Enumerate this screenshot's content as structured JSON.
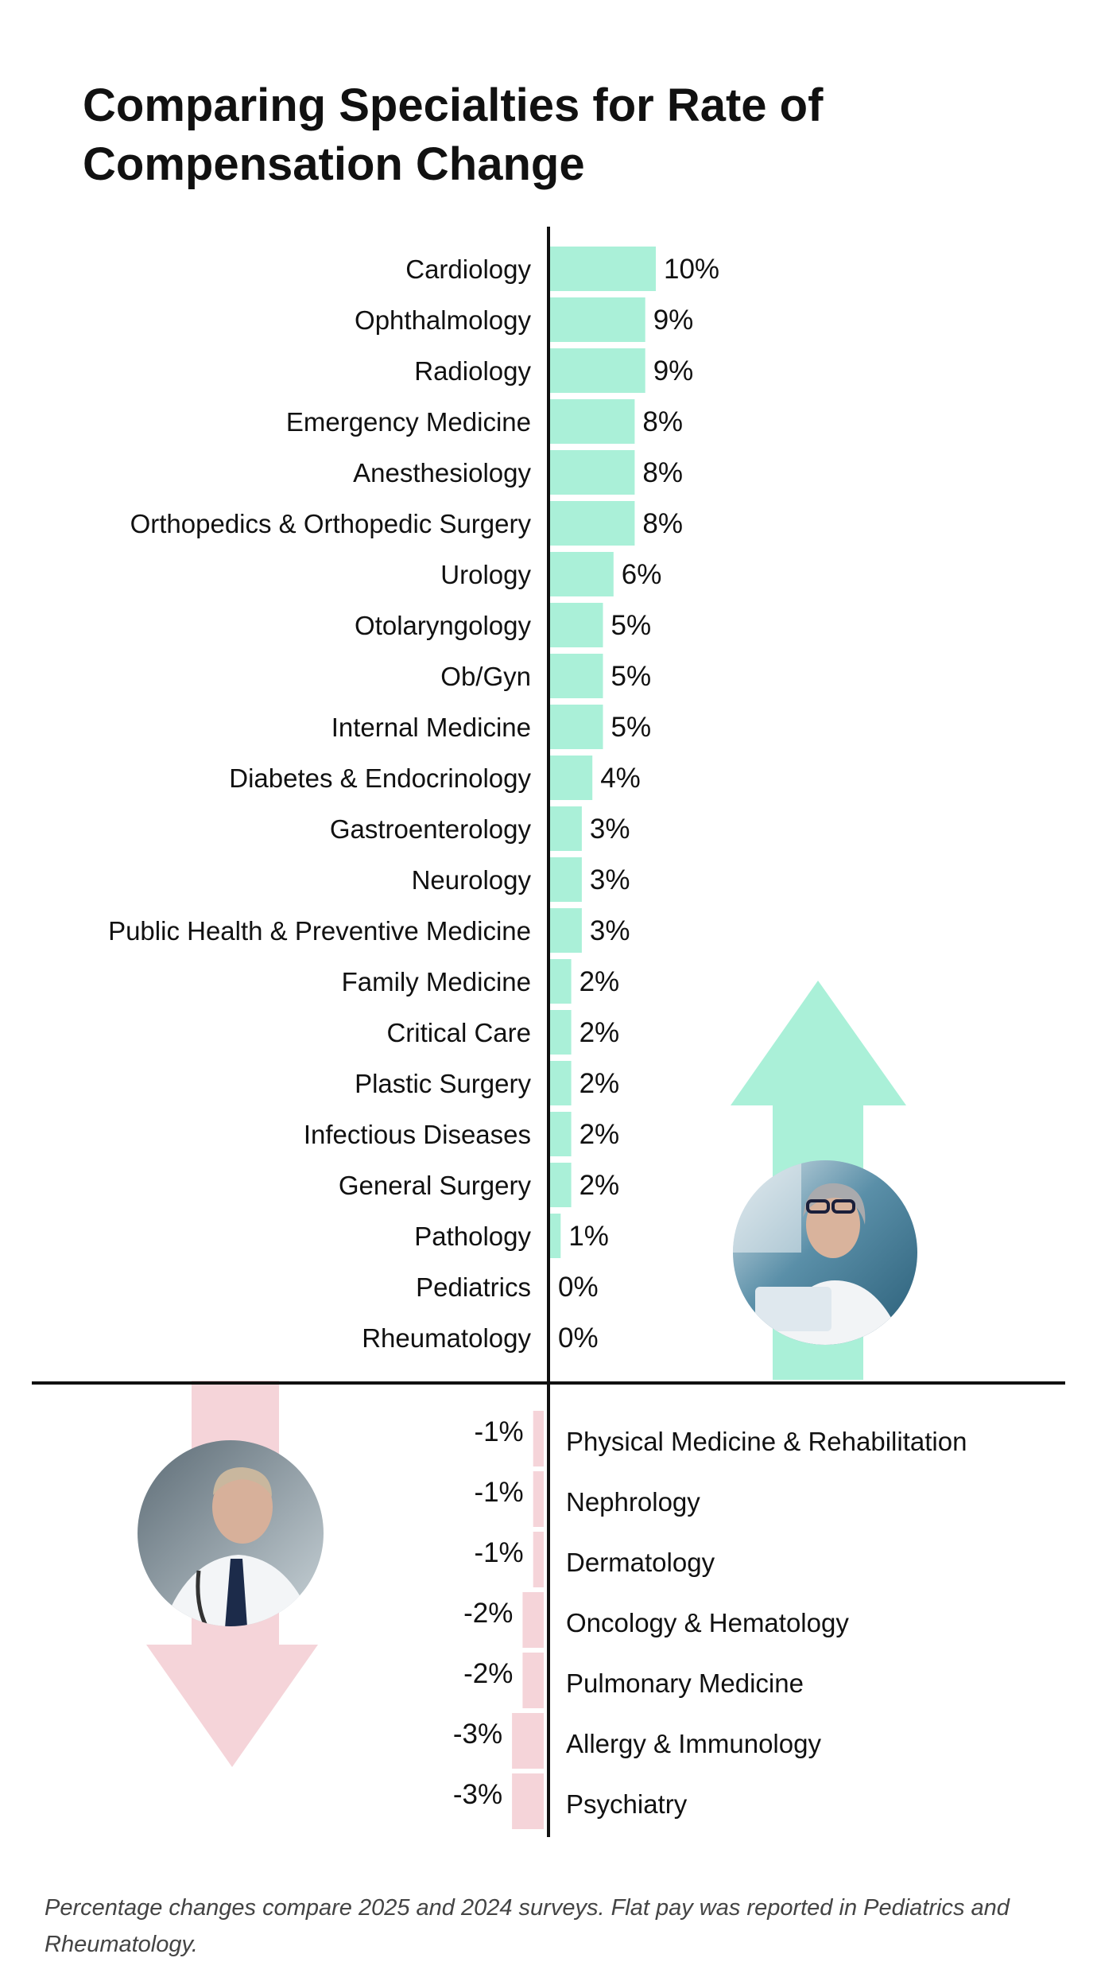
{
  "chart_data": {
    "type": "bar",
    "orientation": "horizontal",
    "title": "Comparing Specialties for Rate of Compensation Change",
    "value_suffix": "%",
    "categories": [
      "Cardiology",
      "Ophthalmology",
      "Radiology",
      "Emergency Medicine",
      "Anesthesiology",
      "Orthopedics & Orthopedic Surgery",
      "Urology",
      "Otolaryngology",
      "Ob/Gyn",
      "Internal Medicine",
      "Diabetes & Endocrinology",
      "Gastroenterology",
      "Neurology",
      "Public Health & Preventive Medicine",
      "Family Medicine",
      "Critical Care",
      "Plastic Surgery",
      "Infectious Diseases",
      "General Surgery",
      "Pathology",
      "Pediatrics",
      "Rheumatology",
      "Physical Medicine & Rehabilitation",
      "Nephrology",
      "Dermatology",
      "Oncology & Hematology",
      "Pulmonary Medicine",
      "Allergy & Immunology",
      "Psychiatry"
    ],
    "values": [
      10,
      9,
      9,
      8,
      8,
      8,
      6,
      5,
      5,
      5,
      4,
      3,
      3,
      3,
      2,
      2,
      2,
      2,
      2,
      1,
      0,
      0,
      -1,
      -1,
      -1,
      -2,
      -2,
      -3,
      -3
    ],
    "colors": {
      "positive": "#aaf0d8",
      "negative": "#f5d4d9",
      "axis": "#111111"
    },
    "arrows": [
      {
        "direction": "up",
        "meaning": "positive",
        "color": "#aaf0d8"
      },
      {
        "direction": "down",
        "meaning": "negative",
        "color": "#f5d4d9"
      }
    ],
    "photos": [
      {
        "name": "female-doctor-photo",
        "near": "up-arrow"
      },
      {
        "name": "male-doctor-photo",
        "near": "down-arrow"
      }
    ],
    "grid": false,
    "legend": "none"
  },
  "footnote": "Percentage changes compare 2025 and 2024 surveys. Flat pay was reported in Pediatrics and Rheumatology."
}
